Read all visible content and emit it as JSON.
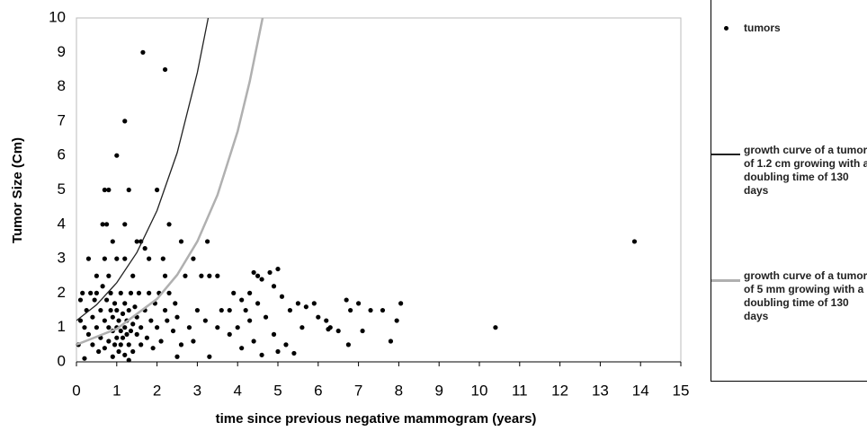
{
  "chart_data": {
    "type": "scatter",
    "xlabel": "time since previous negative mammogram (years)",
    "ylabel": "Tumor Size (Cm)",
    "xlim": [
      0,
      15
    ],
    "xticks": [
      0,
      1,
      2,
      3,
      4,
      5,
      6,
      7,
      8,
      9,
      10,
      11,
      12,
      13,
      14,
      15
    ],
    "ylim": [
      0,
      10
    ],
    "yticks": [
      0,
      1,
      2,
      3,
      4,
      5,
      6,
      7,
      8,
      9,
      10
    ],
    "grid": false,
    "legend": "right",
    "series": [
      {
        "name": "tumors",
        "type": "scatter",
        "color": "#000000",
        "x": [
          1.65,
          2.2,
          1.2,
          1,
          0.7,
          0.8,
          1.3,
          2,
          0.65,
          0.75,
          1.2,
          2.3,
          0.9,
          1.5,
          1.6,
          2.6,
          3.25,
          13.85,
          10.4,
          1.7,
          0.3,
          0.7,
          1,
          1.2,
          1.8,
          2.15,
          2.9,
          0.5,
          0.8,
          1.4,
          2.2,
          3.1,
          3.3,
          4.5,
          2.7,
          3.5,
          4.4,
          4.6,
          4.8,
          5.0,
          4.9,
          4.3,
          4.1,
          3.9,
          3.6,
          3.8,
          4.2,
          4.5,
          4.7,
          5.1,
          5.3,
          5.5,
          5.7,
          5.9,
          6.0,
          6.2,
          6.3,
          6.5,
          6.7,
          6.8,
          7.0,
          7.1,
          7.3,
          7.6,
          7.8,
          7.95,
          8.05,
          6.75,
          6.25,
          5.2,
          5.0,
          4.9,
          4.6,
          4.4,
          4.1,
          3.8,
          3.5,
          3.2,
          3.3,
          2.9,
          3.0,
          2.8,
          2.6,
          2.5,
          5.4,
          5.6,
          4.0,
          4.3,
          0.05,
          0.1,
          0.1,
          0.15,
          0.2,
          0.25,
          0.3,
          0.35,
          0.4,
          0.4,
          0.45,
          0.5,
          0.5,
          0.55,
          0.6,
          0.6,
          0.65,
          0.7,
          0.7,
          0.75,
          0.8,
          0.8,
          0.85,
          0.85,
          0.9,
          0.9,
          0.95,
          0.95,
          1.0,
          1.0,
          1.0,
          1.05,
          1.05,
          1.1,
          1.1,
          1.1,
          1.15,
          1.15,
          1.2,
          1.2,
          1.2,
          1.25,
          1.25,
          1.3,
          1.3,
          1.35,
          1.35,
          1.4,
          1.4,
          1.45,
          1.5,
          1.5,
          1.55,
          1.6,
          1.6,
          1.7,
          1.75,
          1.8,
          1.85,
          1.9,
          1.95,
          2.0,
          2.05,
          2.1,
          2.2,
          2.25,
          2.3,
          2.4,
          2.45,
          2.5,
          0.2,
          1.3,
          0.9
        ],
        "values": [
          9,
          8.5,
          7,
          6,
          5,
          5,
          5,
          5,
          4,
          4,
          4,
          4,
          3.5,
          3.5,
          3.5,
          3.5,
          3.5,
          3.5,
          1,
          3.3,
          3,
          3,
          3,
          3,
          3,
          3,
          3,
          2.5,
          2.5,
          2.5,
          2.5,
          2.5,
          2.5,
          2.5,
          2.5,
          2.5,
          2.6,
          2.4,
          2.6,
          2.7,
          2.2,
          2,
          1.8,
          2,
          1.5,
          1.5,
          1.5,
          1.7,
          1.3,
          1.9,
          1.5,
          1.7,
          1.6,
          1.7,
          1.3,
          1.2,
          1,
          0.9,
          1.8,
          1.5,
          1.7,
          0.9,
          1.5,
          1.5,
          0.6,
          1.2,
          1.7,
          0.5,
          0.95,
          0.5,
          0.3,
          0.8,
          0.2,
          0.6,
          0.4,
          0.8,
          1,
          1.2,
          0.15,
          0.6,
          1.5,
          1,
          0.5,
          0.15,
          0.25,
          1,
          1.0,
          1.2,
          0.5,
          1.2,
          1.8,
          2,
          1,
          1.5,
          0.8,
          2,
          1.3,
          0.5,
          1.8,
          1,
          2,
          0.3,
          1.5,
          0.7,
          2.2,
          1.2,
          0.4,
          1.8,
          1,
          0.6,
          1.5,
          2,
          0.9,
          1.3,
          0.5,
          1.7,
          1,
          0.7,
          1.5,
          0.3,
          1.2,
          0.9,
          2,
          0.5,
          1.4,
          0.7,
          1,
          0.2,
          1.7,
          0.8,
          1.2,
          0.5,
          1.5,
          0.9,
          2,
          1.1,
          0.3,
          1.6,
          0.8,
          1.3,
          2,
          0.5,
          1,
          1.5,
          0.7,
          2,
          1.2,
          0.4,
          1.7,
          1,
          2,
          0.6,
          1.5,
          1.2,
          2,
          0.9,
          1.7,
          1.3,
          0.1,
          0.05,
          0.15
        ]
      },
      {
        "name": "growth curve of a tumor of 1.2 cm growing with a doubling time of 130 days",
        "type": "line",
        "color": "#222222",
        "x": [
          0,
          0.5,
          1,
          1.5,
          2,
          2.5,
          3,
          3.27
        ],
        "values": [
          1.2,
          1.66,
          2.3,
          3.18,
          4.4,
          6.08,
          8.41,
          10
        ]
      },
      {
        "name": "growth curve of a tumor of 5 mm growing with a doubling time of 130 days",
        "type": "line",
        "color": "#b0b0b0",
        "x": [
          0,
          1,
          2,
          2.5,
          3,
          3.5,
          4,
          4.3,
          4.62
        ],
        "values": [
          0.5,
          0.96,
          1.83,
          2.53,
          3.5,
          4.85,
          6.7,
          8.15,
          10
        ]
      }
    ]
  }
}
